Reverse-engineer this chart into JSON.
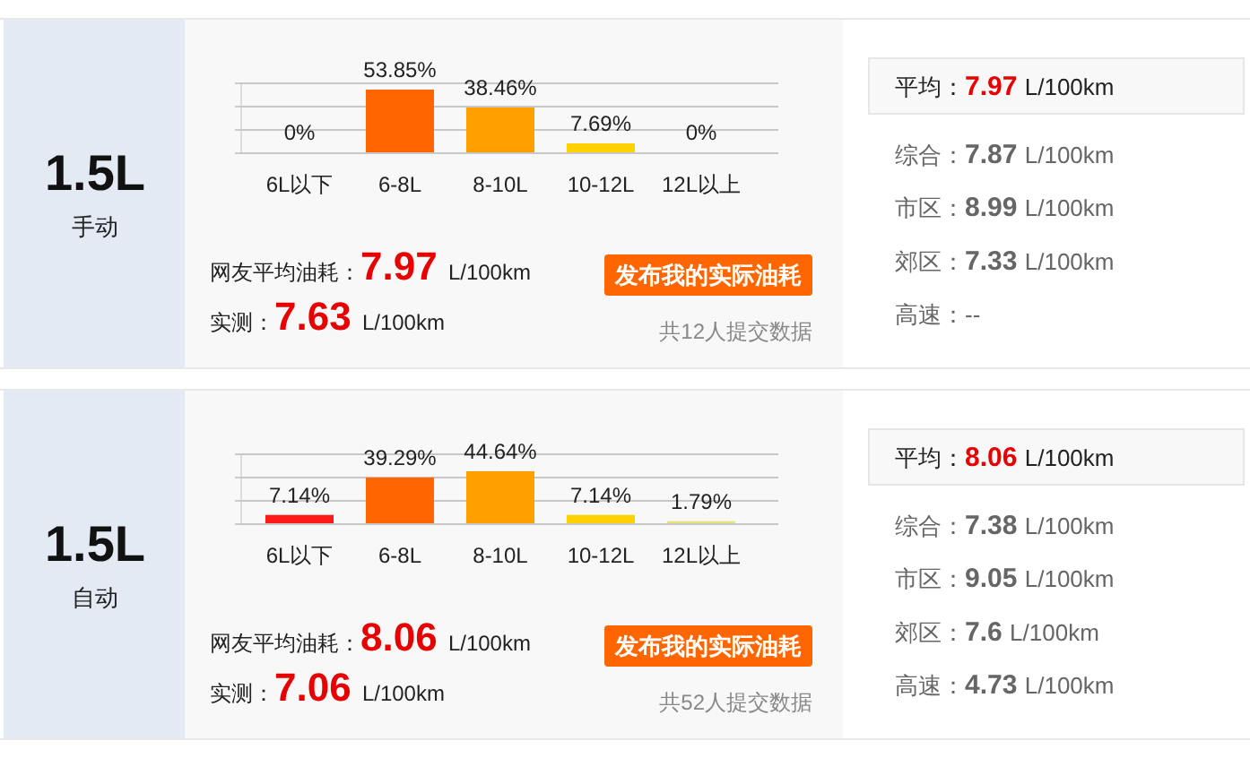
{
  "chart_data": [
    {
      "type": "bar",
      "title": "1.5L",
      "subtitle": "手动",
      "categories": [
        "6L以下",
        "6-8L",
        "8-10L",
        "10-12L",
        "12L以上"
      ],
      "values": [
        0,
        53.85,
        38.46,
        7.69,
        0
      ],
      "value_labels": [
        "0%",
        "53.85%",
        "38.46%",
        "7.69%",
        "0%"
      ],
      "colors": [
        "#ff1a1a",
        "#ff6600",
        "#ffa000",
        "#ffd200",
        "#e8e27a"
      ],
      "ylim": [
        0,
        60
      ],
      "yticks": [
        {
          "value": 0,
          "label": null
        },
        {
          "value": 20,
          "label": null
        },
        {
          "value": 40,
          "label": null
        },
        {
          "value": 60,
          "label": null
        }
      ],
      "tick_labels": "x",
      "grid": "y",
      "annotations": [
        "网友平均油耗：7.97 L/100km",
        "实测：7.63 L/100km",
        "发布我的实际油耗",
        "共12人提交数据"
      ]
    },
    {
      "type": "other",
      "annotations": [
        "平均：7.97 L/100km",
        "综合：7.87 L/100km",
        "市区：8.99 L/100km",
        "郊区：7.33 L/100km",
        "高速：--"
      ]
    },
    {
      "type": "bar",
      "title": "1.5L",
      "subtitle": "自动",
      "categories": [
        "6L以下",
        "6-8L",
        "8-10L",
        "10-12L",
        "12L以上"
      ],
      "values": [
        7.14,
        39.29,
        44.64,
        7.14,
        1.79
      ],
      "value_labels": [
        "7.14%",
        "39.29%",
        "44.64%",
        "7.14%",
        "1.79%"
      ],
      "colors": [
        "#ff1a1a",
        "#ff6600",
        "#ffa000",
        "#ffd200",
        "#e8e27a"
      ],
      "ylim": [
        0,
        60
      ],
      "yticks": [
        {
          "value": 0,
          "label": null
        },
        {
          "value": 20,
          "label": null
        },
        {
          "value": 40,
          "label": null
        },
        {
          "value": 60,
          "label": null
        }
      ],
      "tick_labels": "x",
      "grid": "y",
      "annotations": [
        "网友平均油耗：8.06 L/100km",
        "实测：7.06 L/100km",
        "发布我的实际油耗",
        "共52人提交数据"
      ]
    },
    {
      "type": "other",
      "annotations": [
        "平均：8.06 L/100km",
        "综合：7.38 L/100km",
        "市区：9.05 L/100km",
        "郊区：7.6 L/100km",
        "高速：4.73 L/100km"
      ]
    }
  ]
}
